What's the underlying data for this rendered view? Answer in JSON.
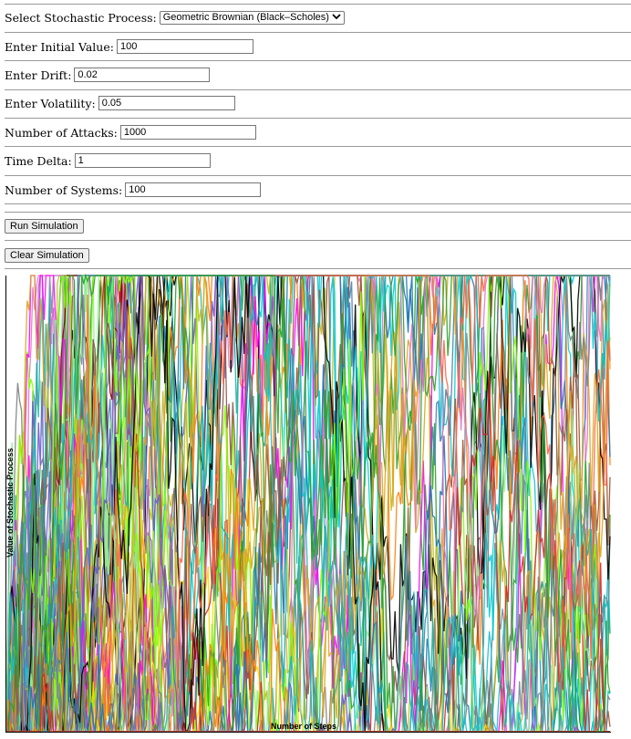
{
  "form": {
    "process": {
      "label": "Select Stochastic Process:",
      "selected": "Geometric Brownian (Black–Scholes)"
    },
    "initial_value": {
      "label": "Enter Initial Value:",
      "value": "100"
    },
    "drift": {
      "label": "Enter Drift:",
      "value": "0.02"
    },
    "volatility": {
      "label": "Enter Volatility:",
      "value": "0.05"
    },
    "attacks": {
      "label": "Number of Attacks:",
      "value": "1000"
    },
    "time_delta": {
      "label": "Time Delta:",
      "value": "1"
    },
    "systems": {
      "label": "Number of Systems:",
      "value": "100"
    }
  },
  "buttons": {
    "run": "Run Simulation",
    "clear": "Clear Simulation"
  },
  "chart_data": {
    "type": "line",
    "title": "",
    "xlabel": "Number of Steps",
    "ylabel": "Value of Stochastic Process",
    "n_series": 100,
    "n_steps": 1000,
    "initial_value": 100,
    "drift": 0.02,
    "volatility": 0.05,
    "x_range": [
      0,
      1000
    ],
    "y_clipped": true,
    "grid": false,
    "palette": [
      "#1f77b4",
      "#ff7f0e",
      "#2ca02c",
      "#d62728",
      "#9467bd",
      "#8c564b",
      "#e377c2",
      "#7f7f7f",
      "#bcbd22",
      "#17becf",
      "#000000",
      "#8b0000",
      "#ffd700",
      "#00ced1",
      "#7fff00",
      "#ff00ff",
      "#4682b4",
      "#ff6347",
      "#90ee90",
      "#6a5acd",
      "#a0522d",
      "#20b2aa",
      "#daa520",
      "#778899"
    ]
  }
}
